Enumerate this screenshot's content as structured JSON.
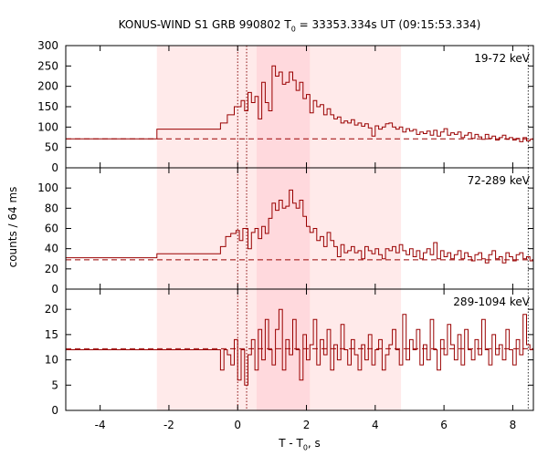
{
  "chart_data": {
    "type": "line",
    "title_main": "KONUS-WIND S1 GRB 990802 T",
    "title_sub": "0",
    "title_rest": " = 33353.334s UT (09:15:53.334)",
    "xlabel_main": "T - T",
    "xlabel_sub": "0",
    "xlabel_rest": ", s",
    "ylabel": "counts / 64 ms",
    "xlim": [
      -5.0,
      8.6
    ],
    "xticks": [
      -4,
      -2,
      0,
      2,
      4,
      6,
      8
    ],
    "shaded_intervals": [
      [
        -2.35,
        4.75
      ],
      [
        0.55,
        2.1
      ]
    ],
    "vertical_markers": [
      0.0,
      0.26,
      8.45
    ],
    "line_color": "#990000",
    "panels": [
      {
        "label": "19-72 keV",
        "ylim": [
          0,
          300
        ],
        "yticks": [
          0,
          50,
          100,
          150,
          200,
          250,
          300
        ],
        "background": 71,
        "series": [
          [
            -5.0,
            71
          ],
          [
            -2.35,
            95
          ],
          [
            -0.5,
            110
          ],
          [
            -0.3,
            130
          ],
          [
            -0.1,
            150
          ],
          [
            0.1,
            165
          ],
          [
            0.2,
            140
          ],
          [
            0.3,
            185
          ],
          [
            0.4,
            160
          ],
          [
            0.5,
            175
          ],
          [
            0.6,
            120
          ],
          [
            0.7,
            210
          ],
          [
            0.8,
            160
          ],
          [
            0.9,
            140
          ],
          [
            1.0,
            250
          ],
          [
            1.1,
            225
          ],
          [
            1.2,
            235
          ],
          [
            1.3,
            205
          ],
          [
            1.4,
            210
          ],
          [
            1.5,
            235
          ],
          [
            1.6,
            215
          ],
          [
            1.7,
            190
          ],
          [
            1.8,
            210
          ],
          [
            1.9,
            170
          ],
          [
            2.0,
            180
          ],
          [
            2.1,
            135
          ],
          [
            2.2,
            165
          ],
          [
            2.3,
            150
          ],
          [
            2.4,
            155
          ],
          [
            2.5,
            130
          ],
          [
            2.6,
            145
          ],
          [
            2.7,
            130
          ],
          [
            2.8,
            120
          ],
          [
            2.9,
            125
          ],
          [
            3.0,
            110
          ],
          [
            3.1,
            115
          ],
          [
            3.2,
            110
          ],
          [
            3.3,
            118
          ],
          [
            3.4,
            105
          ],
          [
            3.5,
            110
          ],
          [
            3.6,
            102
          ],
          [
            3.7,
            108
          ],
          [
            3.8,
            98
          ],
          [
            3.9,
            78
          ],
          [
            4.0,
            103
          ],
          [
            4.1,
            95
          ],
          [
            4.2,
            100
          ],
          [
            4.3,
            108
          ],
          [
            4.4,
            110
          ],
          [
            4.5,
            100
          ],
          [
            4.6,
            95
          ],
          [
            4.7,
            100
          ],
          [
            4.8,
            88
          ],
          [
            4.9,
            96
          ],
          [
            5.0,
            90
          ],
          [
            5.1,
            94
          ],
          [
            5.2,
            82
          ],
          [
            5.3,
            88
          ],
          [
            5.4,
            84
          ],
          [
            5.5,
            90
          ],
          [
            5.6,
            80
          ],
          [
            5.7,
            92
          ],
          [
            5.8,
            78
          ],
          [
            5.9,
            88
          ],
          [
            6.0,
            96
          ],
          [
            6.1,
            80
          ],
          [
            6.2,
            86
          ],
          [
            6.3,
            82
          ],
          [
            6.4,
            88
          ],
          [
            6.5,
            74
          ],
          [
            6.6,
            80
          ],
          [
            6.7,
            86
          ],
          [
            6.8,
            72
          ],
          [
            6.9,
            82
          ],
          [
            7.0,
            76
          ],
          [
            7.1,
            70
          ],
          [
            7.2,
            82
          ],
          [
            7.3,
            72
          ],
          [
            7.4,
            78
          ],
          [
            7.5,
            68
          ],
          [
            7.6,
            74
          ],
          [
            7.7,
            80
          ],
          [
            7.8,
            70
          ],
          [
            7.9,
            74
          ],
          [
            8.0,
            68
          ],
          [
            8.1,
            72
          ],
          [
            8.2,
            64
          ],
          [
            8.3,
            74
          ],
          [
            8.4,
            66
          ],
          [
            8.5,
            70
          ],
          [
            8.6,
            70
          ]
        ]
      },
      {
        "label": "72-289 keV",
        "ylim": [
          0,
          120
        ],
        "yticks": [
          0,
          20,
          40,
          60,
          80,
          100
        ],
        "background": 29,
        "series": [
          [
            -5.0,
            31
          ],
          [
            -2.35,
            35
          ],
          [
            -0.5,
            42
          ],
          [
            -0.35,
            52
          ],
          [
            -0.2,
            55
          ],
          [
            -0.05,
            58
          ],
          [
            0.05,
            48
          ],
          [
            0.15,
            60
          ],
          [
            0.3,
            40
          ],
          [
            0.4,
            56
          ],
          [
            0.5,
            60
          ],
          [
            0.6,
            50
          ],
          [
            0.7,
            62
          ],
          [
            0.8,
            55
          ],
          [
            0.9,
            70
          ],
          [
            1.0,
            85
          ],
          [
            1.1,
            78
          ],
          [
            1.2,
            88
          ],
          [
            1.3,
            80
          ],
          [
            1.4,
            82
          ],
          [
            1.5,
            98
          ],
          [
            1.6,
            85
          ],
          [
            1.7,
            80
          ],
          [
            1.8,
            88
          ],
          [
            1.9,
            72
          ],
          [
            2.0,
            62
          ],
          [
            2.1,
            56
          ],
          [
            2.2,
            60
          ],
          [
            2.3,
            48
          ],
          [
            2.4,
            52
          ],
          [
            2.5,
            42
          ],
          [
            2.6,
            56
          ],
          [
            2.7,
            48
          ],
          [
            2.8,
            42
          ],
          [
            2.9,
            32
          ],
          [
            3.0,
            44
          ],
          [
            3.1,
            36
          ],
          [
            3.2,
            38
          ],
          [
            3.3,
            42
          ],
          [
            3.4,
            36
          ],
          [
            3.5,
            38
          ],
          [
            3.6,
            30
          ],
          [
            3.7,
            42
          ],
          [
            3.8,
            38
          ],
          [
            3.9,
            35
          ],
          [
            4.0,
            40
          ],
          [
            4.1,
            34
          ],
          [
            4.2,
            30
          ],
          [
            4.3,
            40
          ],
          [
            4.4,
            38
          ],
          [
            4.5,
            42
          ],
          [
            4.6,
            36
          ],
          [
            4.7,
            44
          ],
          [
            4.8,
            38
          ],
          [
            4.9,
            34
          ],
          [
            5.0,
            40
          ],
          [
            5.1,
            32
          ],
          [
            5.2,
            38
          ],
          [
            5.3,
            30
          ],
          [
            5.4,
            36
          ],
          [
            5.5,
            40
          ],
          [
            5.6,
            34
          ],
          [
            5.7,
            46
          ],
          [
            5.8,
            30
          ],
          [
            5.9,
            38
          ],
          [
            6.0,
            32
          ],
          [
            6.1,
            36
          ],
          [
            6.2,
            30
          ],
          [
            6.3,
            34
          ],
          [
            6.4,
            38
          ],
          [
            6.5,
            30
          ],
          [
            6.6,
            36
          ],
          [
            6.7,
            32
          ],
          [
            6.8,
            28
          ],
          [
            6.9,
            34
          ],
          [
            7.0,
            36
          ],
          [
            7.1,
            30
          ],
          [
            7.2,
            26
          ],
          [
            7.3,
            34
          ],
          [
            7.4,
            38
          ],
          [
            7.5,
            30
          ],
          [
            7.6,
            32
          ],
          [
            7.7,
            26
          ],
          [
            7.8,
            36
          ],
          [
            7.9,
            32
          ],
          [
            8.0,
            28
          ],
          [
            8.1,
            34
          ],
          [
            8.2,
            36
          ],
          [
            8.3,
            30
          ],
          [
            8.4,
            32
          ],
          [
            8.5,
            28
          ],
          [
            8.6,
            28
          ]
        ]
      },
      {
        "label": "289-1094 keV",
        "ylim": [
          0,
          24
        ],
        "yticks": [
          0,
          5,
          10,
          15,
          20
        ],
        "background": 12.2,
        "series": [
          [
            -5.0,
            12
          ],
          [
            -0.5,
            8
          ],
          [
            -0.4,
            12
          ],
          [
            -0.3,
            11
          ],
          [
            -0.2,
            9
          ],
          [
            -0.1,
            14
          ],
          [
            0.0,
            6
          ],
          [
            0.1,
            12
          ],
          [
            0.2,
            5
          ],
          [
            0.3,
            11
          ],
          [
            0.4,
            14
          ],
          [
            0.5,
            8
          ],
          [
            0.6,
            16
          ],
          [
            0.7,
            10
          ],
          [
            0.8,
            18
          ],
          [
            0.9,
            12
          ],
          [
            1.0,
            9
          ],
          [
            1.1,
            16
          ],
          [
            1.2,
            20
          ],
          [
            1.3,
            8
          ],
          [
            1.4,
            14
          ],
          [
            1.5,
            11
          ],
          [
            1.6,
            18
          ],
          [
            1.7,
            12
          ],
          [
            1.8,
            6
          ],
          [
            1.9,
            15
          ],
          [
            2.0,
            10
          ],
          [
            2.1,
            13
          ],
          [
            2.2,
            18
          ],
          [
            2.3,
            9
          ],
          [
            2.4,
            14
          ],
          [
            2.5,
            11
          ],
          [
            2.6,
            16
          ],
          [
            2.7,
            8
          ],
          [
            2.8,
            13
          ],
          [
            2.9,
            10
          ],
          [
            3.0,
            17
          ],
          [
            3.1,
            12
          ],
          [
            3.2,
            9
          ],
          [
            3.3,
            14
          ],
          [
            3.4,
            11
          ],
          [
            3.5,
            8
          ],
          [
            3.6,
            13
          ],
          [
            3.7,
            10
          ],
          [
            3.8,
            15
          ],
          [
            3.9,
            9
          ],
          [
            4.0,
            12
          ],
          [
            4.1,
            14
          ],
          [
            4.2,
            8
          ],
          [
            4.3,
            11
          ],
          [
            4.4,
            13
          ],
          [
            4.5,
            16
          ],
          [
            4.6,
            12
          ],
          [
            4.7,
            9
          ],
          [
            4.8,
            19
          ],
          [
            4.9,
            10
          ],
          [
            5.0,
            14
          ],
          [
            5.1,
            12
          ],
          [
            5.2,
            16
          ],
          [
            5.3,
            9
          ],
          [
            5.4,
            13
          ],
          [
            5.5,
            10
          ],
          [
            5.6,
            18
          ],
          [
            5.7,
            12
          ],
          [
            5.8,
            8
          ],
          [
            5.9,
            14
          ],
          [
            6.0,
            11
          ],
          [
            6.1,
            17
          ],
          [
            6.2,
            13
          ],
          [
            6.3,
            10
          ],
          [
            6.4,
            15
          ],
          [
            6.5,
            9
          ],
          [
            6.6,
            16
          ],
          [
            6.7,
            12
          ],
          [
            6.8,
            10
          ],
          [
            6.9,
            14
          ],
          [
            7.0,
            11
          ],
          [
            7.1,
            18
          ],
          [
            7.2,
            12
          ],
          [
            7.3,
            9
          ],
          [
            7.4,
            15
          ],
          [
            7.5,
            11
          ],
          [
            7.6,
            13
          ],
          [
            7.7,
            10
          ],
          [
            7.8,
            16
          ],
          [
            7.9,
            12
          ],
          [
            8.0,
            9
          ],
          [
            8.1,
            14
          ],
          [
            8.2,
            11
          ],
          [
            8.3,
            19
          ],
          [
            8.4,
            13
          ],
          [
            8.5,
            12
          ],
          [
            8.6,
            12
          ]
        ]
      }
    ]
  }
}
